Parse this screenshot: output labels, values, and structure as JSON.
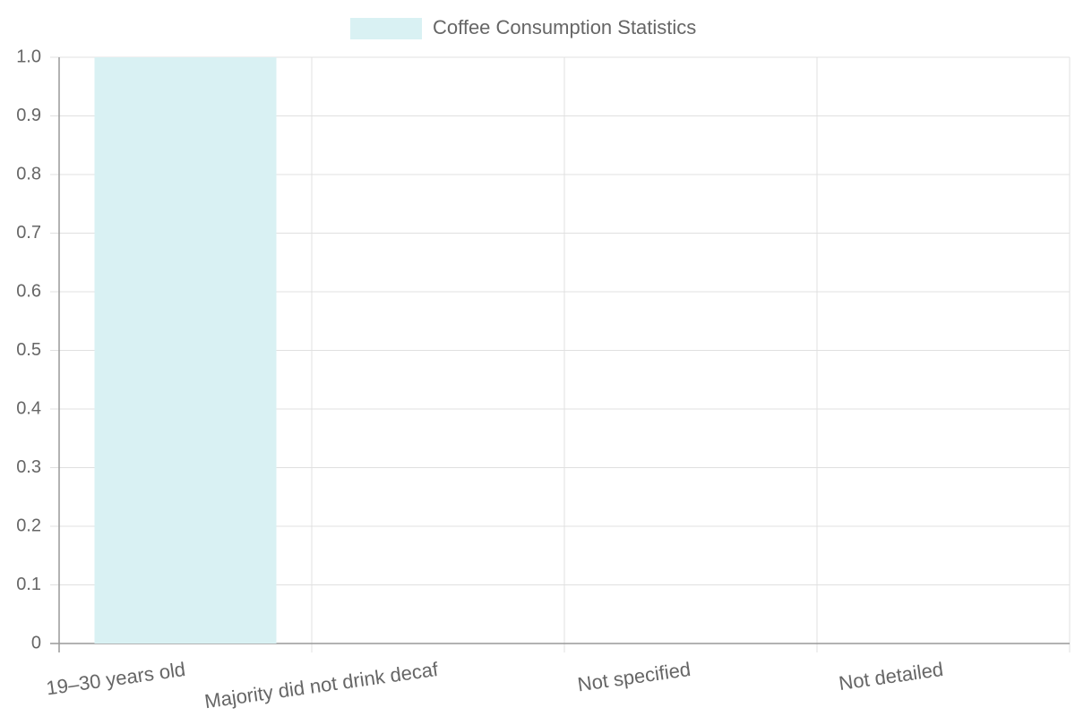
{
  "chart_data": {
    "type": "bar",
    "legend": "Coffee Consumption Statistics",
    "categories": [
      "19–30 years old",
      "Majority did not drink decaf",
      "Not specified",
      "Not detailed"
    ],
    "values": [
      1,
      0,
      0,
      0
    ],
    "color": "#d9f1f3",
    "ylim": [
      0,
      1
    ],
    "yticks": [
      0,
      0.1,
      0.2,
      0.3,
      0.4,
      0.5,
      0.6,
      0.7,
      0.8,
      0.9,
      {
        "value": 1,
        "label": "1.0"
      }
    ],
    "grid": true
  }
}
